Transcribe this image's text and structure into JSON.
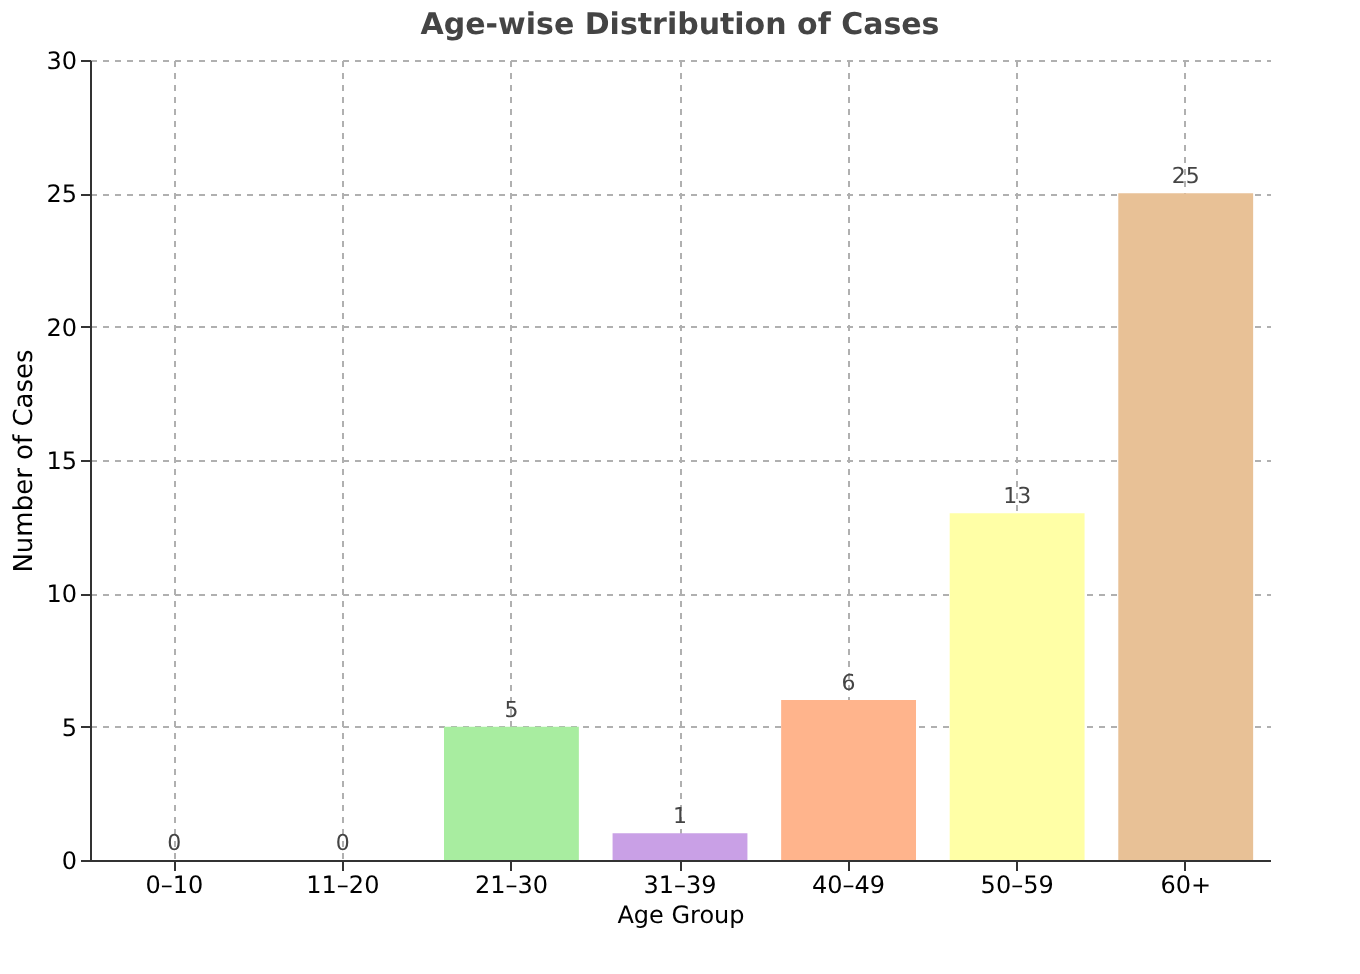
{
  "chart_data": {
    "type": "bar",
    "title": "Age-wise Distribution of Cases",
    "xlabel": "Age Group",
    "ylabel": "Number of Cases",
    "categories": [
      "0–10",
      "11–20",
      "21–30",
      "31–39",
      "40–49",
      "50–59",
      "60+"
    ],
    "values": [
      0,
      0,
      5,
      1,
      6,
      13,
      25
    ],
    "colors": [
      "#87cefa",
      "#ffb6c1",
      "#a8eda0",
      "#c9a0e6",
      "#ffb48c",
      "#ffffa6",
      "#e8c196"
    ],
    "ylim": [
      0,
      30
    ],
    "yticks": [
      0,
      5,
      10,
      15,
      20,
      25,
      30
    ],
    "grid": true,
    "data_labels": true
  }
}
